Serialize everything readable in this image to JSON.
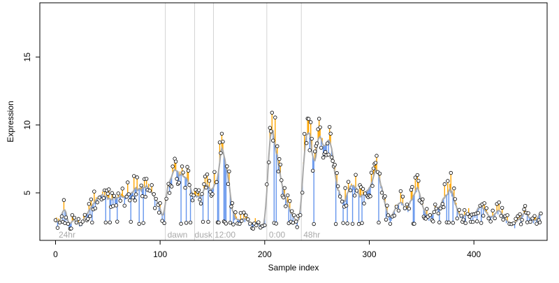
{
  "chart_data": {
    "type": "scatter",
    "xlabel": "Sample index",
    "ylabel": "Expression",
    "xlim": [
      -15,
      470
    ],
    "ylim": [
      1.5,
      19
    ],
    "x_ticks": [
      0,
      100,
      200,
      300,
      400
    ],
    "y_ticks": [
      5,
      10,
      15
    ],
    "grid": false,
    "colors": {
      "up": "#ffa500",
      "down": "#6495ed",
      "smooth": "#a9a9a9",
      "marker_edge": "#000000",
      "marker_fill": "#ffffff",
      "divider": "#d3d3d3",
      "label": "#a9a9a9"
    },
    "dividers": [
      105,
      133,
      151,
      202,
      235
    ],
    "annotations": [
      {
        "text": "24hr",
        "x": 3,
        "y": 1.9
      },
      {
        "text": "dawn",
        "x": 107,
        "y": 1.9
      },
      {
        "text": "dusk",
        "x": 133,
        "y": 1.9
      },
      {
        "text": "12:00",
        "x": 152,
        "y": 1.9
      },
      {
        "text": "0:00",
        "x": 204,
        "y": 1.9
      },
      {
        "text": "48hr",
        "x": 237,
        "y": 1.9
      }
    ],
    "anchors": [
      [
        0,
        2.8
      ],
      [
        6,
        3.0
      ],
      [
        8,
        4.8
      ],
      [
        12,
        2.7
      ],
      [
        18,
        3.0
      ],
      [
        25,
        2.7
      ],
      [
        30,
        3.5
      ],
      [
        35,
        4.2
      ],
      [
        45,
        5.0
      ],
      [
        52,
        4.6
      ],
      [
        60,
        5.0
      ],
      [
        65,
        4.5
      ],
      [
        70,
        5.2
      ],
      [
        78,
        5.4
      ],
      [
        85,
        5.8
      ],
      [
        92,
        4.9
      ],
      [
        98,
        4.5
      ],
      [
        104,
        2.8
      ],
      [
        106,
        5.5
      ],
      [
        112,
        6.5
      ],
      [
        118,
        6.8
      ],
      [
        124,
        6.5
      ],
      [
        128,
        6.0
      ],
      [
        132,
        4.8
      ],
      [
        136,
        4.5
      ],
      [
        142,
        5.4
      ],
      [
        146,
        5.9
      ],
      [
        150,
        5.0
      ],
      [
        155,
        6.5
      ],
      [
        158,
        8.5
      ],
      [
        162,
        9.6
      ],
      [
        165,
        6.5
      ],
      [
        170,
        3.2
      ],
      [
        176,
        3.0
      ],
      [
        180,
        3.1
      ],
      [
        186,
        2.8
      ],
      [
        192,
        2.9
      ],
      [
        197,
        2.7
      ],
      [
        200,
        2.1
      ],
      [
        203,
        6.5
      ],
      [
        206,
        10.3
      ],
      [
        210,
        9.8
      ],
      [
        214,
        6.5
      ],
      [
        218,
        5.0
      ],
      [
        222,
        4.2
      ],
      [
        226,
        3.4
      ],
      [
        230,
        3.0
      ],
      [
        234,
        2.9
      ],
      [
        238,
        8.5
      ],
      [
        242,
        9.8
      ],
      [
        248,
        7.0
      ],
      [
        252,
        9.4
      ],
      [
        256,
        8.4
      ],
      [
        260,
        9.2
      ],
      [
        264,
        8.6
      ],
      [
        268,
        6.0
      ],
      [
        272,
        4.8
      ],
      [
        276,
        4.4
      ],
      [
        280,
        5.4
      ],
      [
        284,
        6.2
      ],
      [
        288,
        5.2
      ],
      [
        292,
        4.8
      ],
      [
        298,
        5.4
      ],
      [
        304,
        5.8
      ],
      [
        308,
        7.2
      ],
      [
        312,
        5.5
      ],
      [
        316,
        3.6
      ],
      [
        320,
        3.2
      ],
      [
        326,
        4.0
      ],
      [
        330,
        4.4
      ],
      [
        336,
        3.6
      ],
      [
        342,
        5.0
      ],
      [
        346,
        5.6
      ],
      [
        350,
        4.2
      ],
      [
        356,
        3.2
      ],
      [
        360,
        3.5
      ],
      [
        366,
        4.0
      ],
      [
        372,
        4.8
      ],
      [
        378,
        5.6
      ],
      [
        384,
        3.6
      ],
      [
        388,
        3.2
      ],
      [
        394,
        3.6
      ],
      [
        400,
        3.4
      ],
      [
        406,
        4.4
      ],
      [
        412,
        3.4
      ],
      [
        418,
        3.2
      ],
      [
        424,
        3.8
      ],
      [
        430,
        3.0
      ],
      [
        436,
        2.7
      ],
      [
        442,
        2.9
      ],
      [
        448,
        3.6
      ],
      [
        454,
        3.2
      ],
      [
        460,
        2.8
      ],
      [
        464,
        4.2
      ]
    ]
  }
}
